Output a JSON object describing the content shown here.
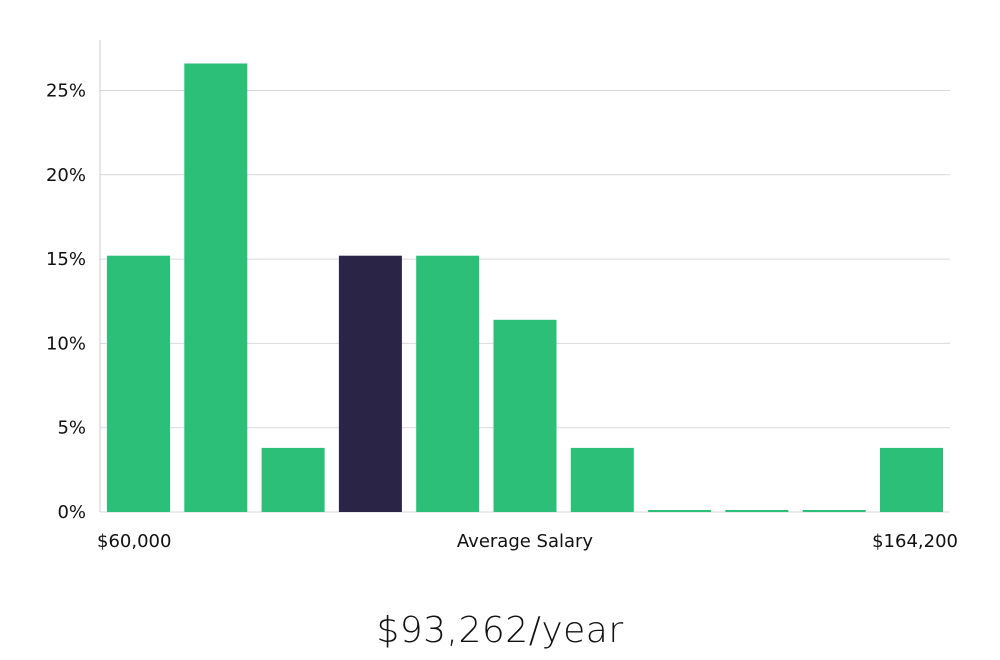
{
  "chart_data": {
    "type": "bar",
    "title": "",
    "xlabel": "Average Salary",
    "ylabel": "",
    "x_min_label": "$60,000",
    "x_max_label": "$164,200",
    "ylim": [
      0,
      28
    ],
    "y_ticks": [
      0,
      5,
      10,
      15,
      20,
      25
    ],
    "y_tick_labels": [
      "0%",
      "5%",
      "10%",
      "15%",
      "20%",
      "25%"
    ],
    "grid": true,
    "values": [
      15.2,
      26.6,
      3.8,
      15.2,
      15.2,
      11.4,
      3.8,
      0,
      0,
      0,
      3.8
    ],
    "highlight_index": 3
  },
  "colors": {
    "bar": "#2cbf78",
    "highlight": "#2a2546",
    "grid": "#d9d9de",
    "axis": "#cccccc"
  },
  "salary_display": "$93,262/year"
}
